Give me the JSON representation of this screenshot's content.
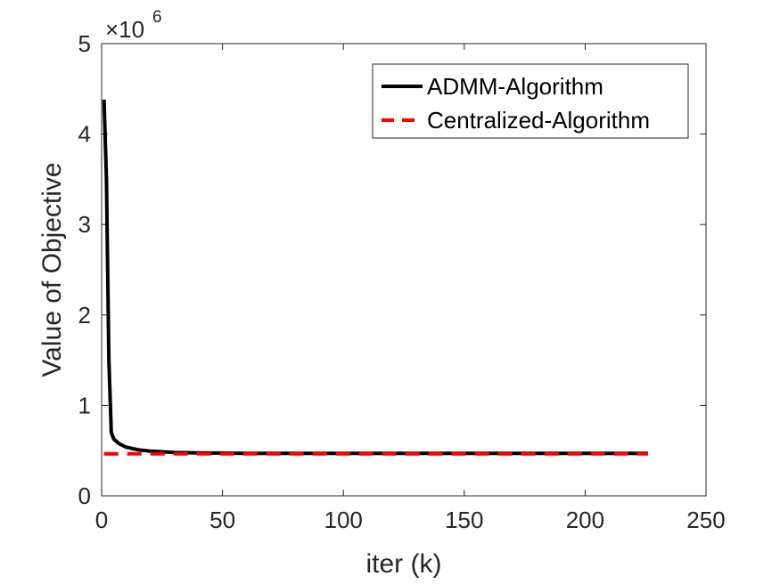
{
  "chart_data": {
    "type": "line",
    "title": "",
    "xlabel": "iter (k)",
    "ylabel": "Value of Objective",
    "exponent_label": {
      "base": "×10",
      "power": "6"
    },
    "xlim": [
      0,
      250
    ],
    "ylim": [
      0,
      5
    ],
    "xticks": [
      0,
      50,
      100,
      150,
      200,
      250
    ],
    "yticks": [
      0,
      1,
      2,
      3,
      4,
      5
    ],
    "grid": false,
    "legend_position": "top-right",
    "series": [
      {
        "name": "ADMM-Algorithm",
        "color": "#000000",
        "style": "solid",
        "x": [
          1,
          2,
          3,
          4,
          5,
          7,
          10,
          15,
          20,
          30,
          40,
          60,
          100,
          150,
          200,
          226
        ],
        "y": [
          4.38,
          3.5,
          1.5,
          0.7,
          0.63,
          0.58,
          0.54,
          0.51,
          0.495,
          0.48,
          0.475,
          0.47,
          0.47,
          0.47,
          0.47,
          0.47
        ]
      },
      {
        "name": "Centralized-Algorithm",
        "color": "#ff0000",
        "style": "dashed",
        "x": [
          1,
          226
        ],
        "y": [
          0.465,
          0.465
        ]
      }
    ]
  }
}
